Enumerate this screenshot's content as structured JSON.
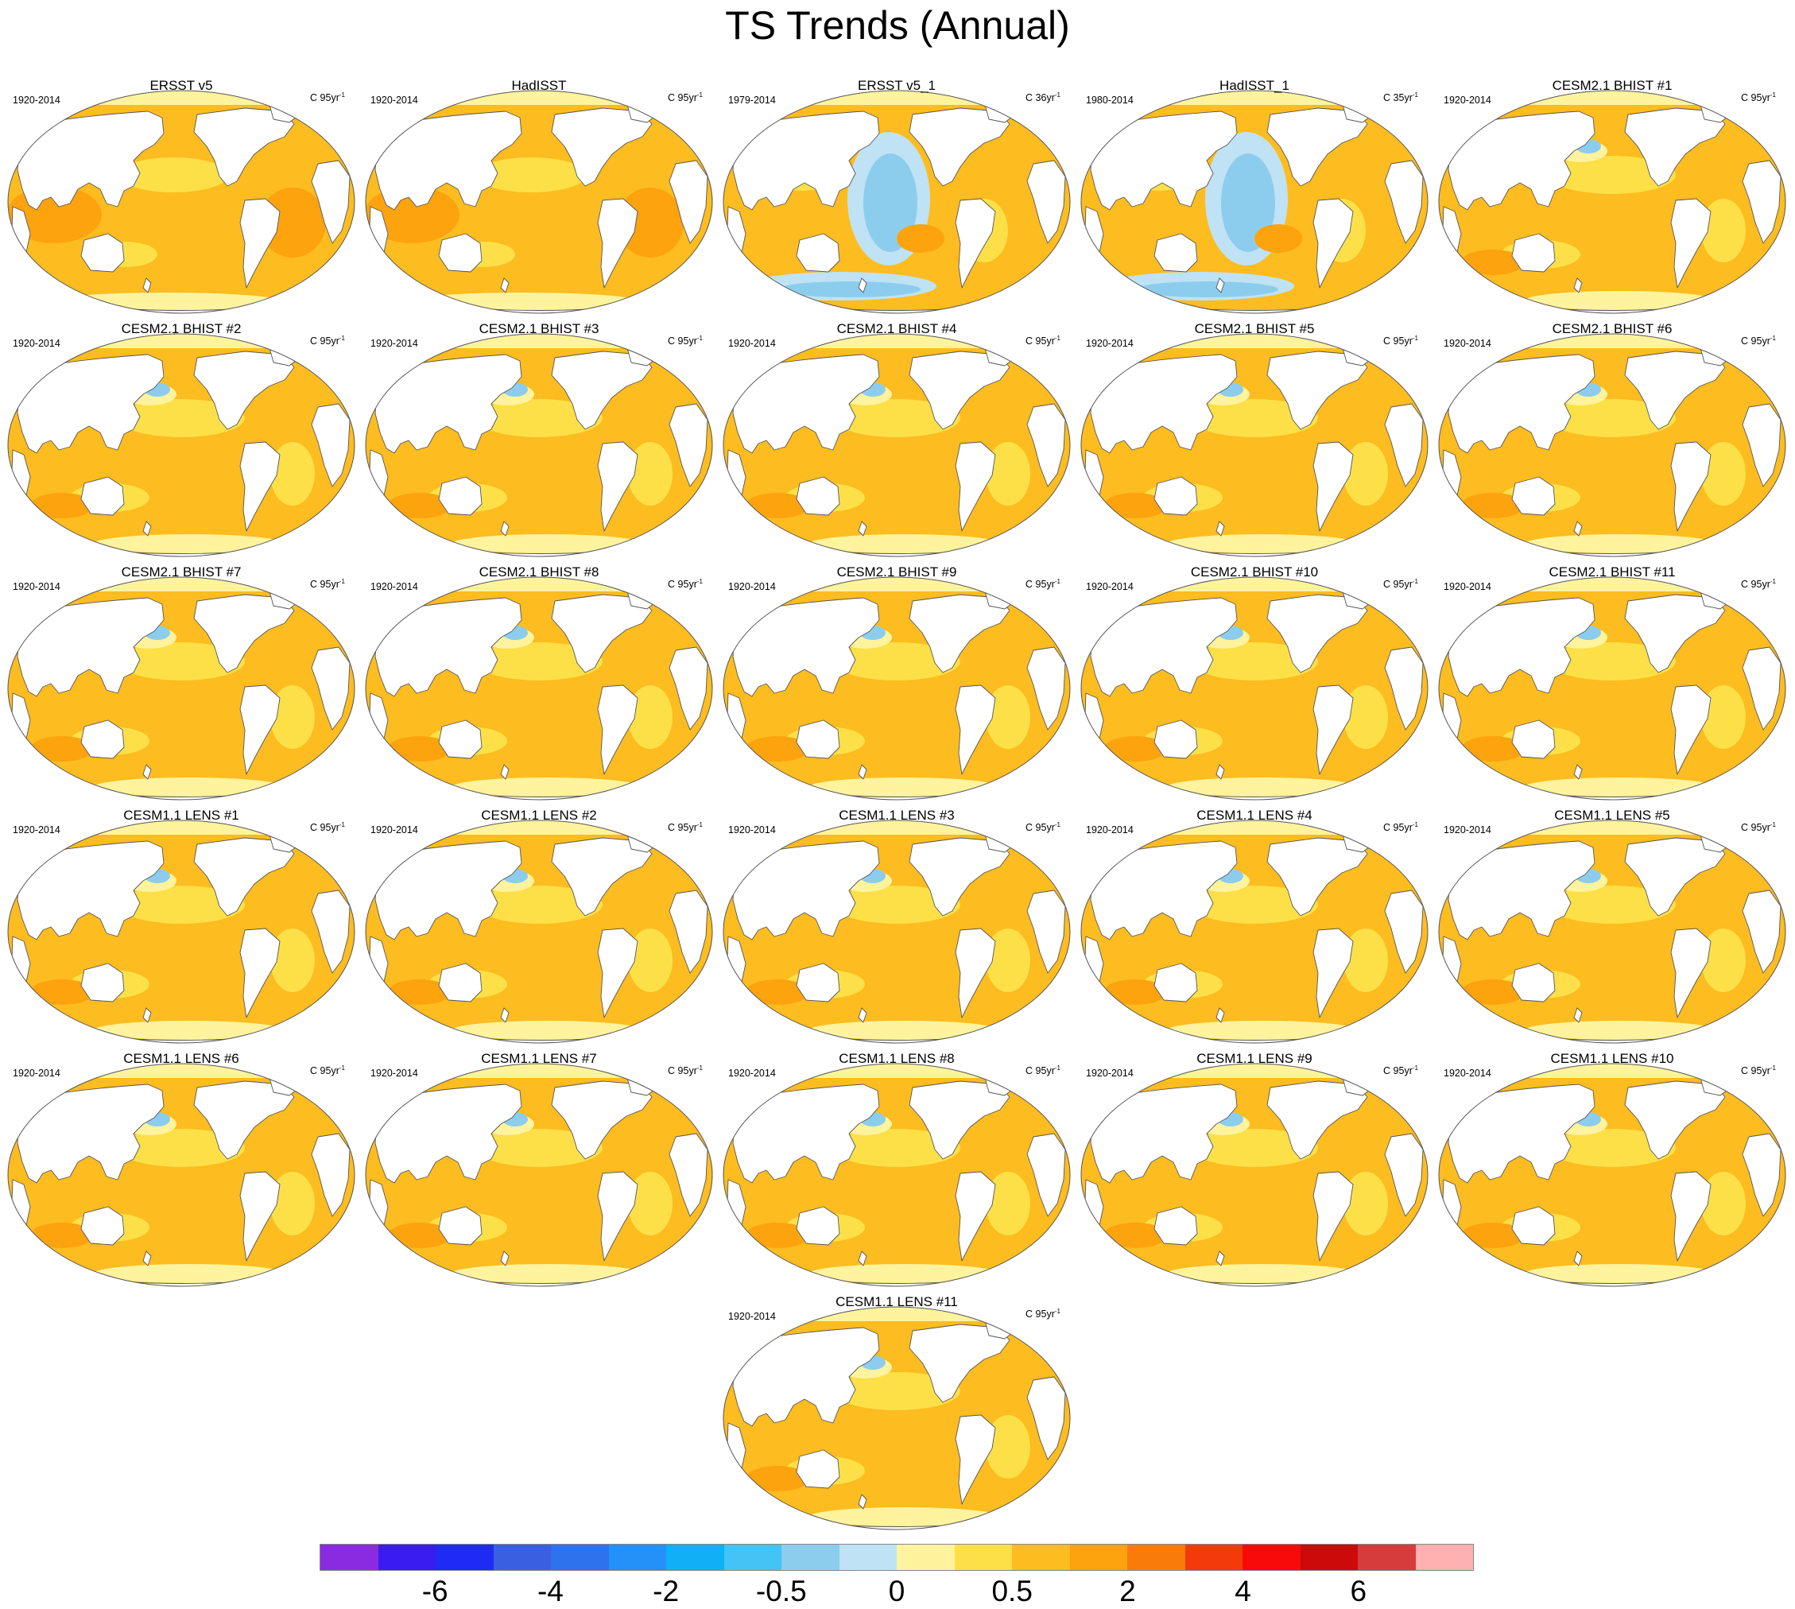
{
  "title": "TS Trends (Annual)",
  "panels": [
    {
      "title": "ERSST v5",
      "period": "1920-2014",
      "units_prefix": "C 95yr",
      "units_exp": "-1",
      "style": "warm"
    },
    {
      "title": "HadISST",
      "period": "1920-2014",
      "units_prefix": "C 95yr",
      "units_exp": "-1",
      "style": "warm"
    },
    {
      "title": "ERSST v5_1",
      "period": "1979-2014",
      "units_prefix": "C 36yr",
      "units_exp": "-1",
      "style": "satellite"
    },
    {
      "title": "HadISST_1",
      "period": "1980-2014",
      "units_prefix": "C 35yr",
      "units_exp": "-1",
      "style": "satellite"
    },
    {
      "title": "CESM2.1 BHIST #1",
      "period": "1920-2014",
      "units_prefix": "C 95yr",
      "units_exp": "-1",
      "style": "model"
    },
    {
      "title": "CESM2.1 BHIST #2",
      "period": "1920-2014",
      "units_prefix": "C 95yr",
      "units_exp": "-1",
      "style": "model"
    },
    {
      "title": "CESM2.1 BHIST #3",
      "period": "1920-2014",
      "units_prefix": "C 95yr",
      "units_exp": "-1",
      "style": "model"
    },
    {
      "title": "CESM2.1 BHIST #4",
      "period": "1920-2014",
      "units_prefix": "C 95yr",
      "units_exp": "-1",
      "style": "model"
    },
    {
      "title": "CESM2.1 BHIST #5",
      "period": "1920-2014",
      "units_prefix": "C 95yr",
      "units_exp": "-1",
      "style": "model"
    },
    {
      "title": "CESM2.1 BHIST #6",
      "period": "1920-2014",
      "units_prefix": "C 95yr",
      "units_exp": "-1",
      "style": "model"
    },
    {
      "title": "CESM2.1 BHIST #7",
      "period": "1920-2014",
      "units_prefix": "C 95yr",
      "units_exp": "-1",
      "style": "model"
    },
    {
      "title": "CESM2.1 BHIST #8",
      "period": "1920-2014",
      "units_prefix": "C 95yr",
      "units_exp": "-1",
      "style": "model"
    },
    {
      "title": "CESM2.1 BHIST #9",
      "period": "1920-2014",
      "units_prefix": "C 95yr",
      "units_exp": "-1",
      "style": "model"
    },
    {
      "title": "CESM2.1 BHIST #10",
      "period": "1920-2014",
      "units_prefix": "C 95yr",
      "units_exp": "-1",
      "style": "model"
    },
    {
      "title": "CESM2.1 BHIST #11",
      "period": "1920-2014",
      "units_prefix": "C 95yr",
      "units_exp": "-1",
      "style": "model"
    },
    {
      "title": "CESM1.1 LENS #1",
      "period": "1920-2014",
      "units_prefix": "C 95yr",
      "units_exp": "-1",
      "style": "model"
    },
    {
      "title": "CESM1.1 LENS #2",
      "period": "1920-2014",
      "units_prefix": "C 95yr",
      "units_exp": "-1",
      "style": "model"
    },
    {
      "title": "CESM1.1 LENS #3",
      "period": "1920-2014",
      "units_prefix": "C 95yr",
      "units_exp": "-1",
      "style": "model"
    },
    {
      "title": "CESM1.1 LENS #4",
      "period": "1920-2014",
      "units_prefix": "C 95yr",
      "units_exp": "-1",
      "style": "model"
    },
    {
      "title": "CESM1.1 LENS #5",
      "period": "1920-2014",
      "units_prefix": "C 95yr",
      "units_exp": "-1",
      "style": "model"
    },
    {
      "title": "CESM1.1 LENS #6",
      "period": "1920-2014",
      "units_prefix": "C 95yr",
      "units_exp": "-1",
      "style": "model"
    },
    {
      "title": "CESM1.1 LENS #7",
      "period": "1920-2014",
      "units_prefix": "C 95yr",
      "units_exp": "-1",
      "style": "model"
    },
    {
      "title": "CESM1.1 LENS #8",
      "period": "1920-2014",
      "units_prefix": "C 95yr",
      "units_exp": "-1",
      "style": "model"
    },
    {
      "title": "CESM1.1 LENS #9",
      "period": "1920-2014",
      "units_prefix": "C 95yr",
      "units_exp": "-1",
      "style": "model"
    },
    {
      "title": "CESM1.1 LENS #10",
      "period": "1920-2014",
      "units_prefix": "C 95yr",
      "units_exp": "-1",
      "style": "model"
    },
    {
      "title": "CESM1.1 LENS #11",
      "period": "1920-2014",
      "units_prefix": "C 95yr",
      "units_exp": "-1",
      "style": "model"
    }
  ],
  "colorbar": {
    "colors": [
      "#8a2be2",
      "#3a1cf0",
      "#1e2bf5",
      "#3a5fe0",
      "#2e72ee",
      "#2391f8",
      "#0fb0f5",
      "#44c3f5",
      "#8ccdee",
      "#bfe2f4",
      "#fff39e",
      "#fde047",
      "#fdbc1f",
      "#fda30d",
      "#f97c0a",
      "#f33a0a",
      "#f80a0a",
      "#cc0a0a",
      "#d63c3c",
      "#ffb0b0"
    ],
    "labels": [
      "-6",
      "-4",
      "-2",
      "-0.5",
      "0",
      "0.5",
      "2",
      "4",
      "6"
    ],
    "label_boundaries": [
      2,
      4,
      6,
      8,
      10,
      12,
      14,
      16,
      18
    ]
  },
  "map_colors": {
    "land": "#ffffff",
    "coast": "#555555",
    "base_ocean": "#fdbc1f",
    "light_warm": "#fde047",
    "pale": "#fff39e",
    "strong_warm": "#fda30d",
    "cool": "#8ccdee",
    "pale_cool": "#bfe2f4",
    "blue": "#2e72ee"
  }
}
